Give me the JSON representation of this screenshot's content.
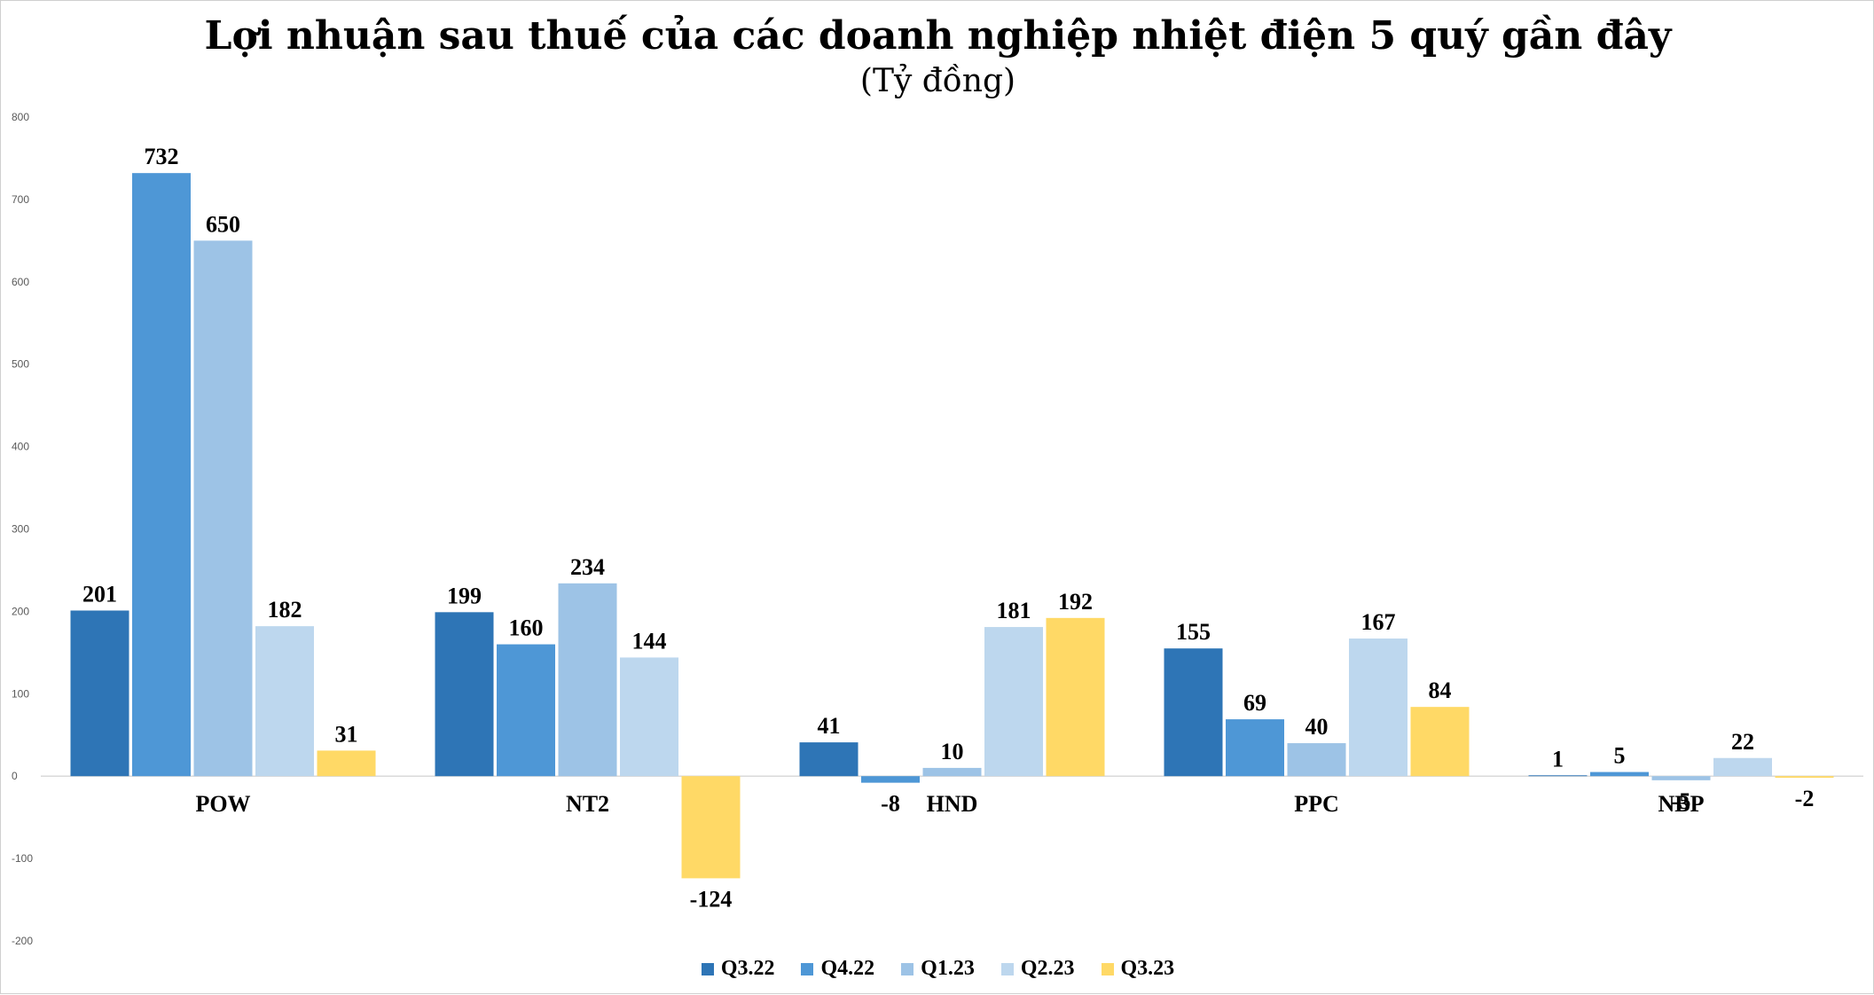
{
  "chart_data": {
    "type": "bar",
    "title": "Lợi nhuận sau thuế của các doanh nghiệp nhiệt điện 5 quý gần đây",
    "subtitle": "(Tỷ đồng)",
    "categories": [
      "POW",
      "NT2",
      "HND",
      "PPC",
      "NBP"
    ],
    "series": [
      {
        "name": "Q3.22",
        "color": "#2E75B6",
        "values": [
          201,
          199,
          41,
          155,
          1
        ]
      },
      {
        "name": "Q4.22",
        "color": "#4E97D6",
        "values": [
          732,
          160,
          -8,
          69,
          5
        ]
      },
      {
        "name": "Q1.23",
        "color": "#9DC3E6",
        "values": [
          650,
          234,
          10,
          40,
          -5
        ]
      },
      {
        "name": "Q2.23",
        "color": "#BDD7EE",
        "values": [
          182,
          144,
          181,
          167,
          22
        ]
      },
      {
        "name": "Q3.23",
        "color": "#FFD966",
        "values": [
          31,
          -124,
          192,
          84,
          -2
        ]
      }
    ],
    "ylim": [
      -200,
      800
    ],
    "yticks": [
      -200,
      -100,
      0,
      100,
      200,
      300,
      400,
      500,
      600,
      700,
      800
    ],
    "grid": false,
    "legend": "bottom"
  }
}
